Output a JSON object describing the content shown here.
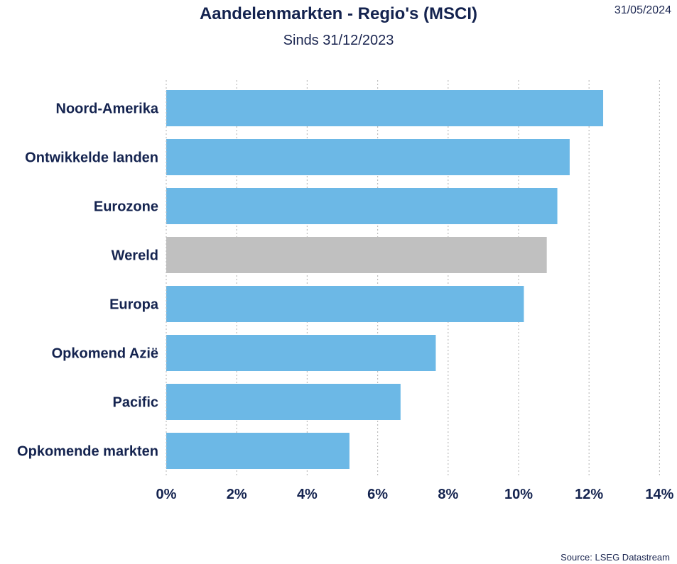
{
  "header": {
    "title": "Aandelenmarkten - Regio's (MSCI)",
    "subtitle": "Sinds 31/12/2023",
    "date": "31/05/2024"
  },
  "footer": {
    "source": "Source: LSEG Datastream"
  },
  "chart_data": {
    "type": "bar",
    "orientation": "horizontal",
    "categories": [
      "Noord-Amerika",
      "Ontwikkelde landen",
      "Eurozone",
      "Wereld",
      "Europa",
      "Opkomend Azië",
      "Pacific",
      "Opkomende markten"
    ],
    "values": [
      12.4,
      11.45,
      11.1,
      10.8,
      10.15,
      7.65,
      6.65,
      5.2
    ],
    "highlight_category": "Wereld",
    "colors": {
      "default": "#6cb8e6",
      "highlight": "#c0c0c0",
      "text": "#14234f",
      "grid": "#bdbdbd"
    },
    "xlim": [
      0,
      14
    ],
    "xticks": [
      "0%",
      "2%",
      "4%",
      "6%",
      "8%",
      "10%",
      "12%",
      "14%"
    ],
    "grid": "vertical-dotted",
    "legend": "none"
  }
}
